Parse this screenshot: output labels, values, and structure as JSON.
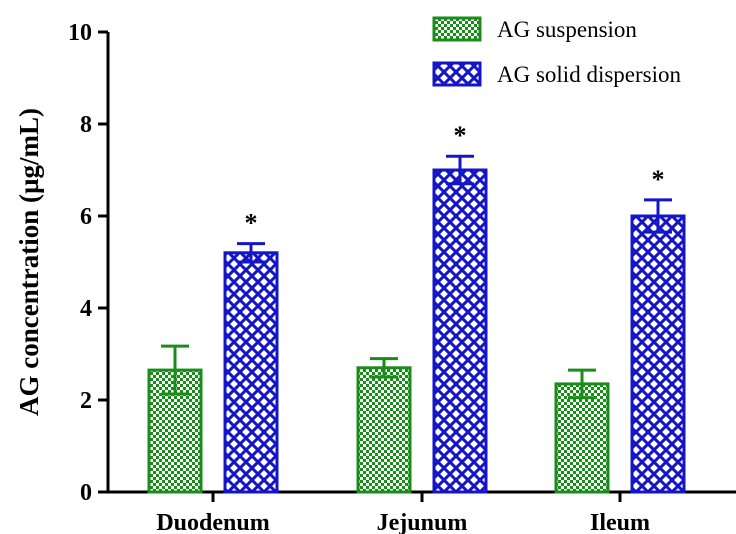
{
  "chart_data": {
    "type": "bar",
    "title": "",
    "xlabel": "",
    "ylabel": "AG concentration (µg/mL)",
    "ylim": [
      0,
      10
    ],
    "yticks": [
      0,
      2,
      4,
      6,
      8,
      10
    ],
    "categories": [
      "Duodenum",
      "Jejunum",
      "Ileum"
    ],
    "series": [
      {
        "name": "AG suspension",
        "values": [
          2.65,
          2.7,
          2.35
        ],
        "errors": [
          0.52,
          0.2,
          0.3
        ],
        "color": "#1a8c1a",
        "pattern": "checker"
      },
      {
        "name": "AG solid dispersion",
        "values": [
          5.2,
          7.0,
          6.0
        ],
        "errors": [
          0.2,
          0.3,
          0.35
        ],
        "color": "#1515c8",
        "pattern": "diamond-lattice"
      }
    ],
    "annotations": [
      {
        "category": "Duodenum",
        "series": "AG solid dispersion",
        "text": "*"
      },
      {
        "category": "Jejunum",
        "series": "AG solid dispersion",
        "text": "*"
      },
      {
        "category": "Ileum",
        "series": "AG solid dispersion",
        "text": "*"
      }
    ],
    "legend_position": "top-right",
    "grid": false
  }
}
